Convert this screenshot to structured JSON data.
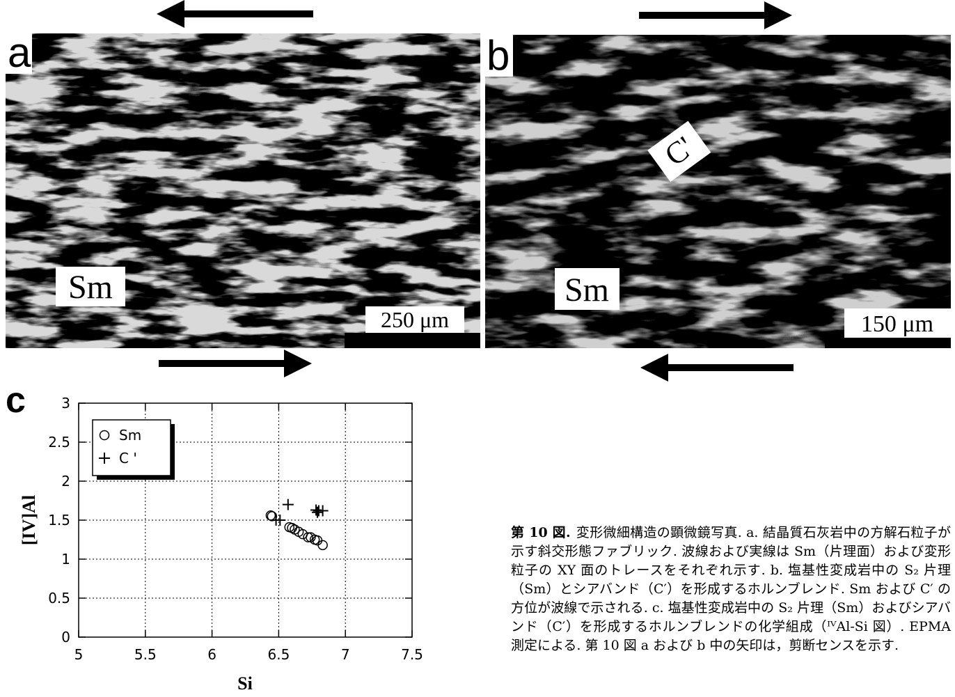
{
  "panel_a": {
    "label": "a",
    "foliation": "Sm",
    "scale": "250 μm"
  },
  "panel_b": {
    "label": "b",
    "foliation": "Sm",
    "shear_band": "C'",
    "scale": "150 μm"
  },
  "chart_data": {
    "type": "scatter",
    "panel_label": "c",
    "xlabel": "Si",
    "ylabel": "[IV]Al",
    "xlim": [
      5,
      7.5
    ],
    "xticks": [
      5,
      5.5,
      6,
      6.5,
      7,
      7.5
    ],
    "ylim": [
      0,
      3
    ],
    "yticks": [
      0,
      0.5,
      1,
      1.5,
      2,
      2.5,
      3
    ],
    "grid": true,
    "legend": "upper left",
    "series": [
      {
        "name": "Sm",
        "marker": "circle",
        "color": "#000000",
        "x": [
          6.44,
          6.45,
          6.58,
          6.6,
          6.62,
          6.65,
          6.68,
          6.72,
          6.74,
          6.77,
          6.79,
          6.83
        ],
        "values": [
          1.56,
          1.55,
          1.41,
          1.4,
          1.38,
          1.35,
          1.32,
          1.28,
          1.28,
          1.25,
          1.24,
          1.18
        ]
      },
      {
        "name": "C '",
        "marker": "plus",
        "color": "#000000",
        "x": [
          6.48,
          6.51,
          6.57,
          6.78,
          6.8,
          6.83,
          6.79
        ],
        "values": [
          1.5,
          1.5,
          1.7,
          1.63,
          1.62,
          1.62,
          1.6
        ]
      }
    ]
  },
  "caption": {
    "label": "第 10 図.",
    "text": "変形微細構造の顕微鏡写真. a. 結晶質石灰岩中の方解石粒子が示す斜交形態ファブリック. 波線および実線は Sm（片理面）および変形粒子の XY 面のトレースをそれぞれ示す. b. 塩基性変成岩中の S₂ 片理（Sm）とシアバンド（C′）を形成するホルンブレンド. Sm および C′ の方位が波線で示される. c. 塩基性変成岩中の S₂ 片理（Sm）およびシアバンド（C′）を形成するホルンブレンドの化学組成（ᴵⱽAl-Si 図）. EPMA 測定による. 第 10 図 a および b 中の矢印は，剪断センスを示す."
  }
}
